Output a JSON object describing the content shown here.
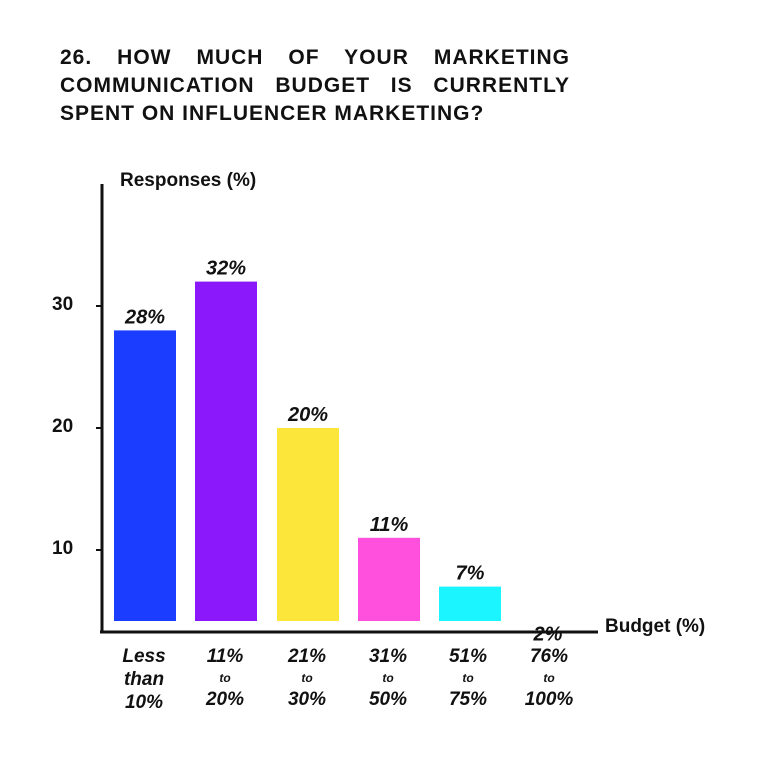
{
  "title": "26. HOW MUCH OF YOUR MARKETING COMMUNICATION BUDGET IS CURRENTLY SPENT ON INFLUENCER MARKETING?",
  "chart_data": {
    "type": "bar",
    "title": "26. HOW MUCH OF YOUR MARKETING COMMUNICATION BUDGET IS CURRENTLY SPENT ON INFLUENCER MARKETING?",
    "xlabel": "Budget (%)",
    "ylabel": "Responses (%)",
    "yticks": [
      "10",
      "20",
      "30"
    ],
    "categories": [
      {
        "top": "Less",
        "mid": "than",
        "bottom": "10%"
      },
      {
        "top": "11%",
        "mid": "to",
        "bottom": "20%"
      },
      {
        "top": "21%",
        "mid": "to",
        "bottom": "30%"
      },
      {
        "top": "31%",
        "mid": "to",
        "bottom": "50%"
      },
      {
        "top": "51%",
        "mid": "to",
        "bottom": "75%"
      },
      {
        "top": "76%",
        "mid": "to",
        "bottom": "100%"
      }
    ],
    "values": [
      28,
      32,
      20,
      11,
      7,
      2
    ],
    "labels": [
      "28%",
      "32%",
      "20%",
      "11%",
      "7%",
      "2%"
    ],
    "colors": [
      "#1a3dff",
      "#8b17fb",
      "#fce63a",
      "#ff50dd",
      "#1bf5ff",
      "#b8f529"
    ],
    "grid": false,
    "legend": "none"
  }
}
